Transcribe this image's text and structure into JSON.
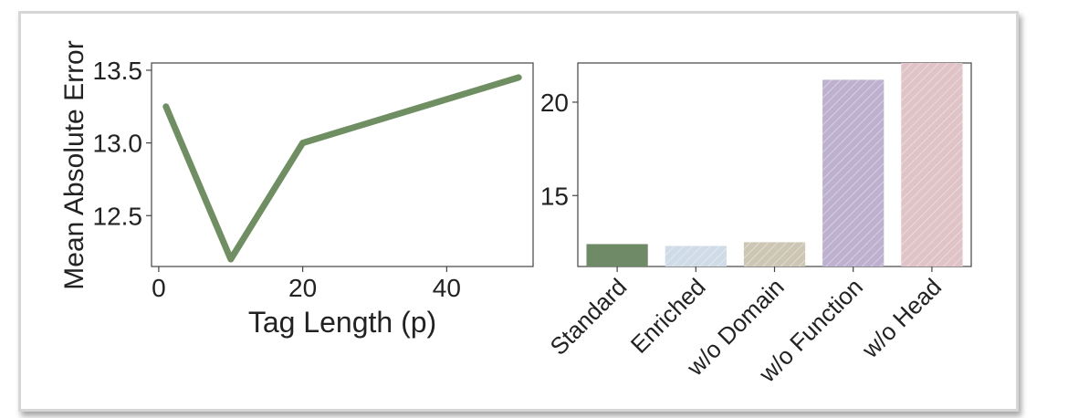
{
  "colors": {
    "line": "#6f8f62",
    "bars": [
      "#6f8a66",
      "#cfdbe6",
      "#cdc6b4",
      "#bdb1cf",
      "#dfc3c7"
    ],
    "axis": "#444444",
    "frame_border": "#d6d6d6"
  },
  "chart_data": [
    {
      "type": "line",
      "xlabel": "Tag Length (p)",
      "ylabel": "Mean Absolute Error",
      "xlim": [
        -1,
        52
      ],
      "ylim": [
        12.15,
        13.55
      ],
      "xticks": [
        0,
        20,
        40
      ],
      "yticks": [
        12.5,
        13.0,
        13.5
      ],
      "ytick_labels": [
        "12.5",
        "13.0",
        "13.5"
      ],
      "x": [
        1,
        10,
        20,
        50
      ],
      "y": [
        13.25,
        12.2,
        13.0,
        13.45
      ],
      "grid": false
    },
    {
      "type": "bar",
      "categories": [
        "Standard",
        "Enriched",
        "w/o Domain",
        "w/o Function",
        "w/o Head"
      ],
      "values": [
        12.4,
        12.3,
        12.5,
        21.2,
        22.1
      ],
      "ylim": [
        11.2,
        22.1
      ],
      "yticks": [
        15,
        20
      ],
      "ytick_labels": [
        "15",
        "20"
      ],
      "hatched": [
        false,
        true,
        true,
        true,
        true
      ],
      "grid": false
    }
  ]
}
